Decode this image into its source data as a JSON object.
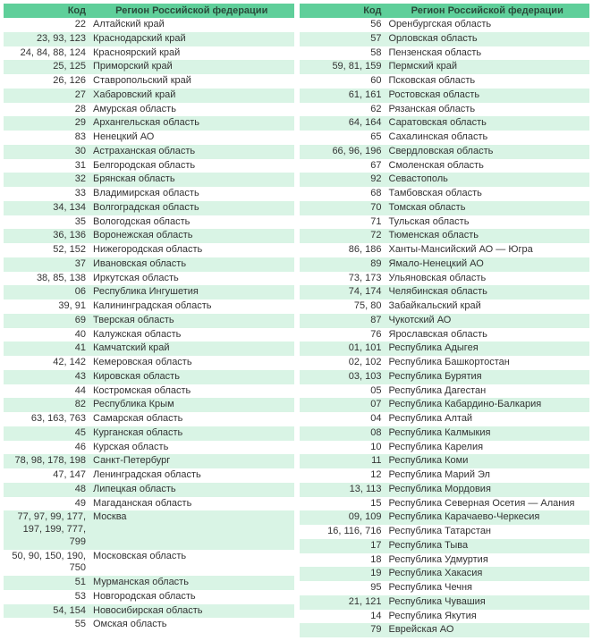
{
  "headers": {
    "code": "Код",
    "region": "Регион Российской федерации"
  },
  "left": [
    {
      "code": "22",
      "region": "Алтайский край"
    },
    {
      "code": "23, 93, 123",
      "region": "Краснодарский край"
    },
    {
      "code": "24, 84, 88, 124",
      "region": "Красноярский край"
    },
    {
      "code": "25, 125",
      "region": "Приморский край"
    },
    {
      "code": "26, 126",
      "region": "Ставропольский край"
    },
    {
      "code": "27",
      "region": "Хабаровский край"
    },
    {
      "code": "28",
      "region": "Амурская область"
    },
    {
      "code": "29",
      "region": "Архангельская область"
    },
    {
      "code": "83",
      "region": "Ненецкий АО"
    },
    {
      "code": "30",
      "region": "Астраханская область"
    },
    {
      "code": "31",
      "region": "Белгородская область"
    },
    {
      "code": "32",
      "region": "Брянская область"
    },
    {
      "code": "33",
      "region": "Владимирская область"
    },
    {
      "code": "34, 134",
      "region": "Волгоградская область"
    },
    {
      "code": "35",
      "region": "Вологодская область"
    },
    {
      "code": "36, 136",
      "region": "Воронежская область"
    },
    {
      "code": "52, 152",
      "region": "Нижегородская область"
    },
    {
      "code": "37",
      "region": "Ивановская область"
    },
    {
      "code": "38, 85, 138",
      "region": "Иркутская область"
    },
    {
      "code": "06",
      "region": "Республика Ингушетия"
    },
    {
      "code": "39, 91",
      "region": "Калининградская область"
    },
    {
      "code": "69",
      "region": "Тверская область"
    },
    {
      "code": "40",
      "region": "Калужская область"
    },
    {
      "code": "41",
      "region": "Камчатский край"
    },
    {
      "code": "42, 142",
      "region": "Кемеровская область"
    },
    {
      "code": "43",
      "region": "Кировская область"
    },
    {
      "code": "44",
      "region": "Костромская область"
    },
    {
      "code": "82",
      "region": "Республика Крым"
    },
    {
      "code": "63, 163, 763",
      "region": "Самарская область"
    },
    {
      "code": "45",
      "region": "Курганская область"
    },
    {
      "code": "46",
      "region": "Курская область"
    },
    {
      "code": "78, 98, 178, 198",
      "region": "Санкт-Петербург"
    },
    {
      "code": "47, 147",
      "region": "Ленинградская область"
    },
    {
      "code": "48",
      "region": "Липецкая область"
    },
    {
      "code": "49",
      "region": "Магаданская область"
    },
    {
      "code": "77, 97, 99, 177, 197, 199, 777, 799",
      "region": "Москва"
    },
    {
      "code": "50, 90, 150, 190, 750",
      "region": "Московская область"
    },
    {
      "code": "51",
      "region": "Мурманская область"
    },
    {
      "code": "53",
      "region": "Новгородская область"
    },
    {
      "code": "54, 154",
      "region": "Новосибирская область"
    },
    {
      "code": "55",
      "region": "Омская область"
    }
  ],
  "right": [
    {
      "code": "56",
      "region": "Оренбургская область"
    },
    {
      "code": "57",
      "region": "Орловская область"
    },
    {
      "code": "58",
      "region": "Пензенская область"
    },
    {
      "code": "59, 81, 159",
      "region": "Пермский край"
    },
    {
      "code": "60",
      "region": "Псковская область"
    },
    {
      "code": "61, 161",
      "region": "Ростовская область"
    },
    {
      "code": "62",
      "region": "Рязанская область"
    },
    {
      "code": "64, 164",
      "region": "Саратовская область"
    },
    {
      "code": "65",
      "region": "Сахалинская область"
    },
    {
      "code": "66, 96, 196",
      "region": "Свердловская область"
    },
    {
      "code": "67",
      "region": "Смоленская область"
    },
    {
      "code": "92",
      "region": "Севастополь"
    },
    {
      "code": "68",
      "region": "Тамбовская область"
    },
    {
      "code": "70",
      "region": "Томская область"
    },
    {
      "code": "71",
      "region": "Тульская область"
    },
    {
      "code": "72",
      "region": "Тюменская область"
    },
    {
      "code": "86, 186",
      "region": "Ханты-Мансийский АО — Югра"
    },
    {
      "code": "89",
      "region": "Ямало-Ненецкий АО"
    },
    {
      "code": "73, 173",
      "region": "Ульяновская область"
    },
    {
      "code": "74, 174",
      "region": "Челябинская область"
    },
    {
      "code": "75, 80",
      "region": "Забайкальский край"
    },
    {
      "code": "87",
      "region": "Чукотский АО"
    },
    {
      "code": "76",
      "region": "Ярославская область"
    },
    {
      "code": "01, 101",
      "region": "Республика Адыгея"
    },
    {
      "code": "02, 102",
      "region": "Республика Башкортостан"
    },
    {
      "code": "03, 103",
      "region": "Республика Бурятия"
    },
    {
      "code": "05",
      "region": "Республика Дагестан"
    },
    {
      "code": "07",
      "region": "Республика Кабардино-Балкария"
    },
    {
      "code": "04",
      "region": "Республика Алтай"
    },
    {
      "code": "08",
      "region": "Республика Калмыкия"
    },
    {
      "code": "10",
      "region": "Республика Карелия"
    },
    {
      "code": "11",
      "region": "Республика Коми"
    },
    {
      "code": "12",
      "region": "Республика Марий Эл"
    },
    {
      "code": "13, 113",
      "region": "Республика Мордовия"
    },
    {
      "code": "15",
      "region": "Республика Северная Осетия — Алания"
    },
    {
      "code": "09, 109",
      "region": "Республика Карачаево-Черкесия"
    },
    {
      "code": "16, 116, 716",
      "region": "Республика Татарстан"
    },
    {
      "code": "17",
      "region": "Республика Тыва"
    },
    {
      "code": "18",
      "region": "Республика Удмуртия"
    },
    {
      "code": "19",
      "region": "Республика Хакасия"
    },
    {
      "code": "95",
      "region": "Республика Чечня"
    },
    {
      "code": "21, 121",
      "region": "Республика Чувашия"
    },
    {
      "code": "14",
      "region": "Республика Якутия"
    },
    {
      "code": "79",
      "region": "Еврейская АО"
    }
  ]
}
